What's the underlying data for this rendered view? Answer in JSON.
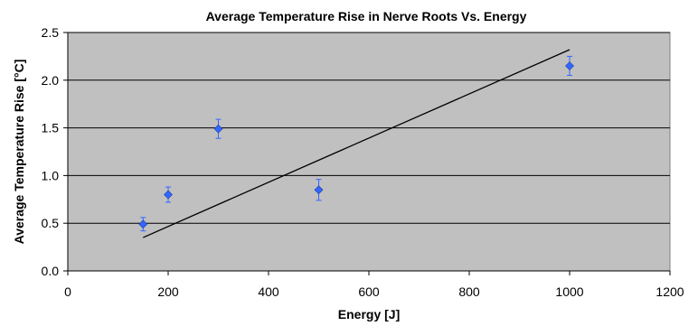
{
  "chart_data": {
    "type": "scatter",
    "title": "Average Temperature Rise in Nerve Roots Vs. Energy",
    "xlabel": "Energy [J]",
    "ylabel": "Average Temperature Rise [°C]",
    "xlim": [
      0,
      1200
    ],
    "ylim": [
      0,
      2.5
    ],
    "x_ticks": [
      "0",
      "200",
      "400",
      "600",
      "800",
      "1000",
      "1200"
    ],
    "y_ticks": [
      "0.0",
      "0.5",
      "1.0",
      "1.5",
      "2.0",
      "2.5"
    ],
    "grid": "horizontal",
    "plot_background": "#c0c0c0",
    "marker_color": "#3366ff",
    "trendline_color": "#000000",
    "points": [
      {
        "x": 150,
        "y": 0.49,
        "err": 0.07
      },
      {
        "x": 200,
        "y": 0.8,
        "err": 0.08
      },
      {
        "x": 300,
        "y": 1.49,
        "err": 0.1
      },
      {
        "x": 500,
        "y": 0.85,
        "err": 0.11
      },
      {
        "x": 1000,
        "y": 2.15,
        "err": 0.1
      }
    ],
    "trendline": {
      "x": [
        150,
        1000
      ],
      "y": [
        0.35,
        2.32
      ]
    }
  }
}
